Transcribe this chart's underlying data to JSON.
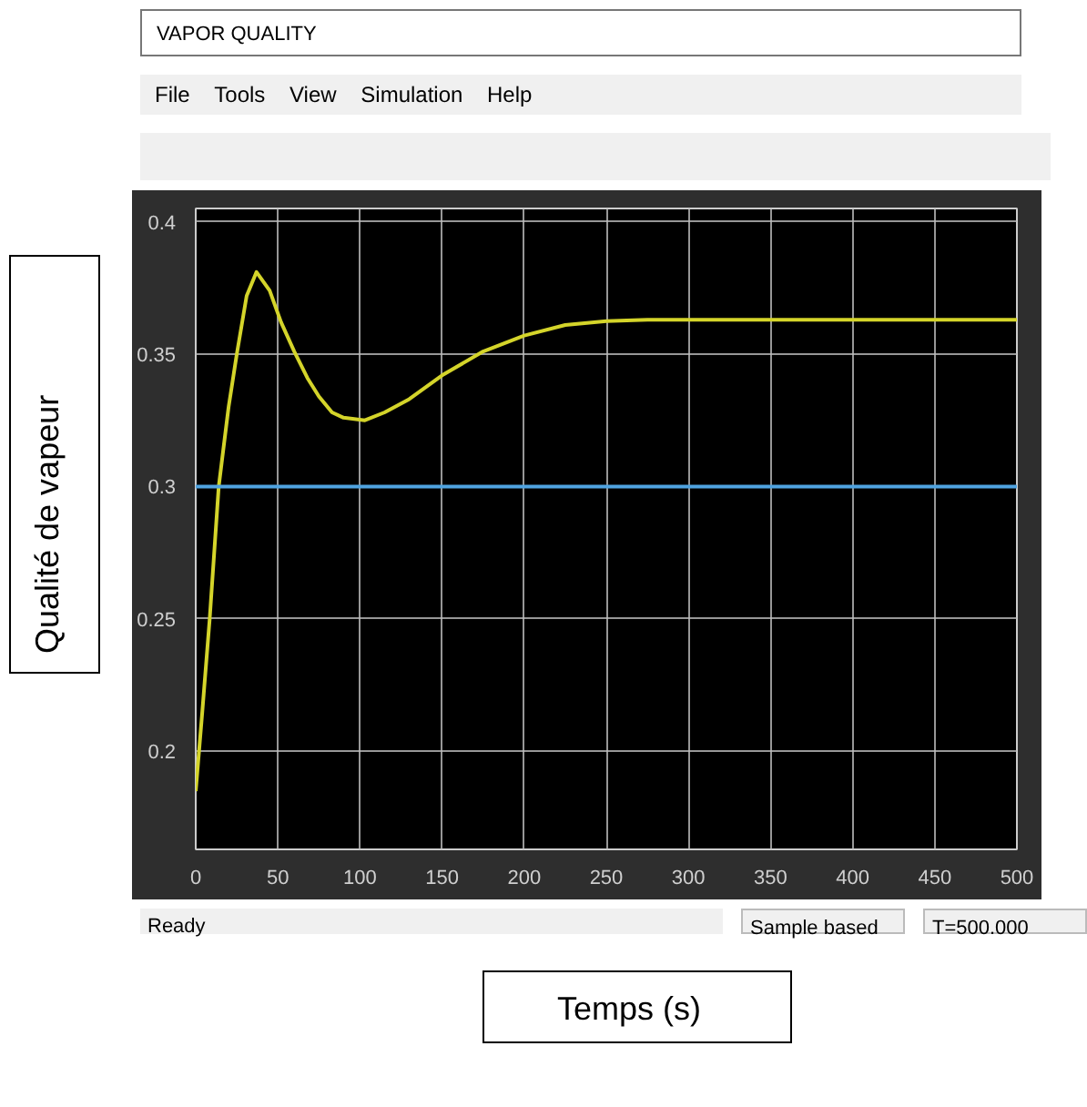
{
  "chart_data": {
    "type": "line",
    "title": "VAPOR QUALITY",
    "xlabel": "Temps (s)",
    "ylabel": "Qualité de vapeur",
    "annotations": [
      "File",
      "Tools",
      "View",
      "Simulation",
      "Help",
      "Ready",
      "Sample based",
      "T=500.000"
    ],
    "xlim": [
      0,
      500
    ],
    "ylim": [
      0.163,
      0.405
    ],
    "xticks": [
      0,
      50,
      100,
      150,
      200,
      250,
      300,
      350,
      400,
      450,
      500
    ],
    "yticks": [
      {
        "value": 0.2,
        "label": "0.2"
      },
      0.25,
      {
        "value": 0.3,
        "label": "0.3"
      },
      0.35,
      {
        "value": 0.4,
        "label": "0.4"
      }
    ],
    "grid": true,
    "marker": "none",
    "line_style": "solid",
    "series": [
      {
        "color": "#d4d42a",
        "x": [
          0,
          4,
          8.5,
          14,
          20,
          25,
          31,
          37,
          45,
          52,
          60,
          68,
          75,
          83,
          90,
          103,
          115,
          130,
          150,
          175,
          200,
          225,
          250,
          275,
          300,
          400,
          500
        ],
        "values": [
          0.185,
          0.215,
          0.25,
          0.3,
          0.33,
          0.35,
          0.372,
          0.381,
          0.374,
          0.362,
          0.351,
          0.341,
          0.334,
          0.328,
          0.326,
          0.325,
          0.328,
          0.333,
          0.342,
          0.351,
          0.357,
          0.361,
          0.3625,
          0.363,
          0.363,
          0.363,
          0.363
        ]
      },
      {
        "color": "#4fa3e0",
        "x": [
          0,
          500
        ],
        "values": [
          0.3,
          0.3
        ]
      }
    ]
  }
}
